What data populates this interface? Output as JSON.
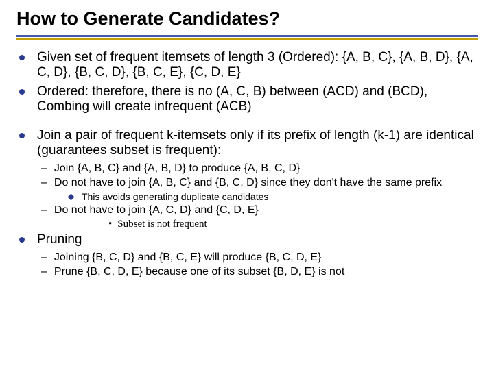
{
  "colors": {
    "bullet": "#2a3b8f",
    "rule_top": "#4758aa",
    "rule_bottom": "#c4a000",
    "diamond": "#2a3b8f"
  },
  "sizes": {
    "title_pt": 27,
    "l1_pt": 19,
    "l2_pt": 16,
    "l3_pt": 14,
    "l4_pt": 15
  },
  "title": "How to Generate Candidates?",
  "bullets": [
    "Given set of frequent itemsets of length 3 (Ordered): {A, B, C}, {A, B, D}, {A, C, D}, {B, C, D}, {B, C, E}, {C, D, E}",
    "Ordered: therefore, there is no (A, C, B) between (ACD) and (BCD), Combing will create infrequent (ACB)",
    "Join a pair of frequent k-itemsets only if its prefix of length (k-1) are identical (guarantees subset is frequent):",
    "Pruning"
  ],
  "sub_join": [
    "Join {A, B, C} and {A, B, D} to produce {A, B, C, D}",
    "Do not have to join {A, B, C} and {B, C, D} since they don't have the same prefix",
    "Do not have to join {A, C, D} and {C, D, E}"
  ],
  "sub_join_sub": "This avoids generating duplicate candidates",
  "sub_join_sub2": "Subset is not frequent",
  "sub_prune": [
    "Joining {B, C, D} and {B, C, E} will produce {B, C, D, E}",
    "Prune {B, C, D, E} because one of its subset {B, D, E} is not"
  ]
}
